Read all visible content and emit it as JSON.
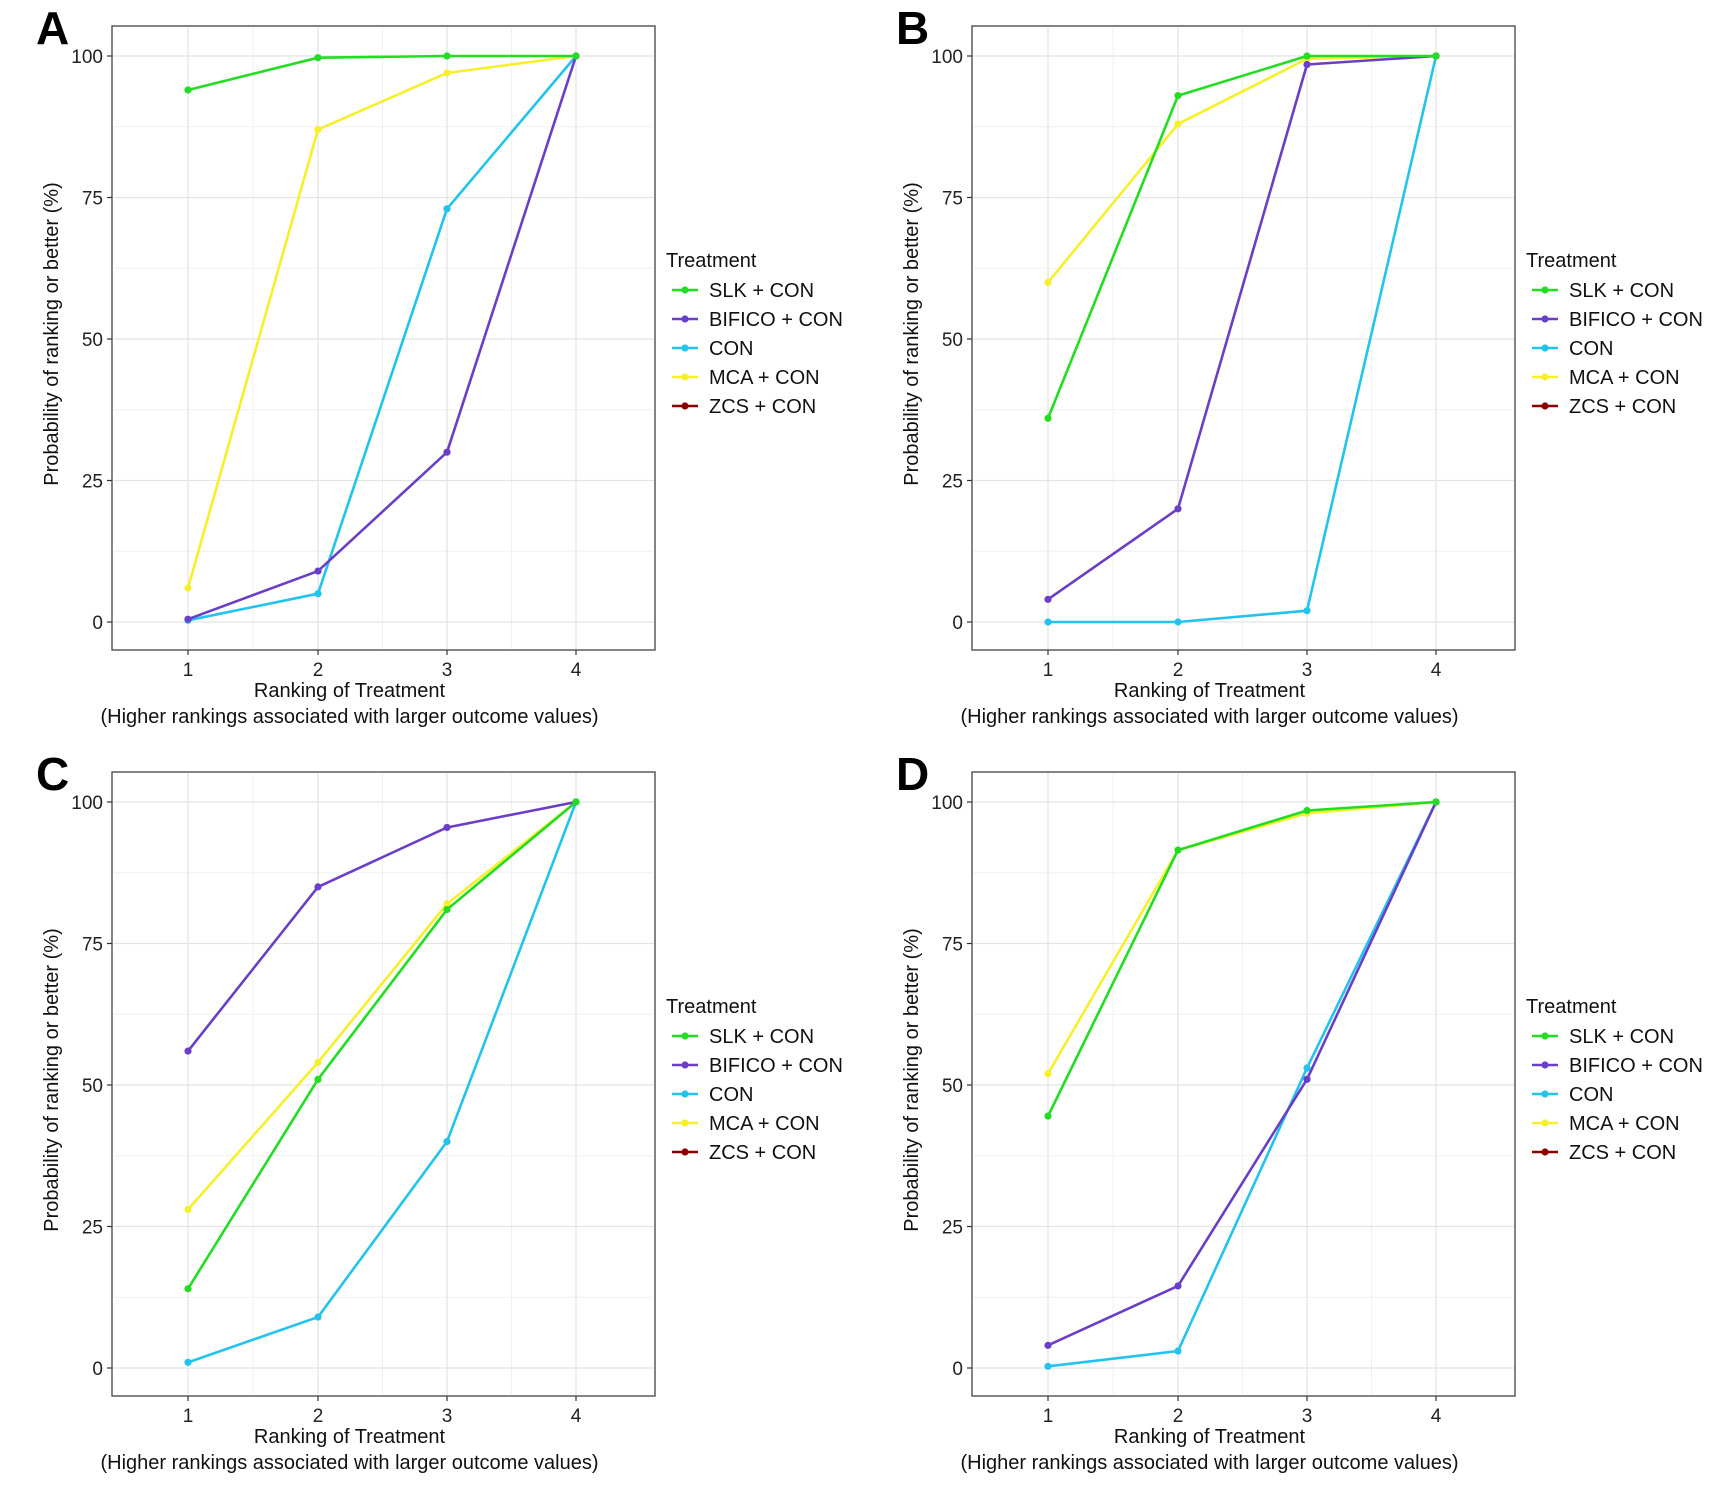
{
  "figure": {
    "axis_labels": {
      "ylabel": "Probability of  ranking or better (%)",
      "xlabel_line1": "Ranking of  Treatment",
      "xlabel_line2": "(Higher rankings associated with larger outcome values)"
    },
    "legend_title": "Treatment",
    "series_colors": {
      "SLK + CON": "#22dd22",
      "BIFICO + CON": "#6a3fc8",
      "CON": "#22c3ee",
      "MCA + CON": "#f6f02a",
      "ZCS + CON": "#8b0000"
    }
  },
  "chart_data": [
    {
      "panel": "A",
      "type": "line",
      "x": [
        1,
        2,
        3,
        4
      ],
      "ylim": [
        0,
        100
      ],
      "yticks": [
        0,
        25,
        50,
        75,
        100
      ],
      "legend": [
        "SLK + CON",
        "BIFICO + CON",
        "CON",
        "MCA + CON",
        "ZCS + CON"
      ],
      "series": [
        {
          "name": "MCA + CON",
          "values": [
            6,
            87,
            97,
            100
          ]
        },
        {
          "name": "CON",
          "values": [
            0.3,
            5,
            73,
            100
          ]
        },
        {
          "name": "BIFICO + CON",
          "values": [
            0.5,
            9,
            30,
            100
          ]
        },
        {
          "name": "SLK + CON",
          "values": [
            94,
            99.7,
            100,
            100
          ]
        }
      ]
    },
    {
      "panel": "B",
      "type": "line",
      "x": [
        1,
        2,
        3,
        4
      ],
      "ylim": [
        0,
        100
      ],
      "yticks": [
        0,
        25,
        50,
        75,
        100
      ],
      "legend": [
        "SLK + CON",
        "BIFICO + CON",
        "CON",
        "MCA + CON",
        "ZCS + CON"
      ],
      "series": [
        {
          "name": "MCA + CON",
          "values": [
            60,
            88,
            99.5,
            100
          ]
        },
        {
          "name": "CON",
          "values": [
            0,
            0,
            2,
            100
          ]
        },
        {
          "name": "BIFICO + CON",
          "values": [
            4,
            20,
            98.5,
            100
          ]
        },
        {
          "name": "SLK + CON",
          "values": [
            36,
            93,
            100,
            100
          ]
        }
      ]
    },
    {
      "panel": "C",
      "type": "line",
      "x": [
        1,
        2,
        3,
        4
      ],
      "ylim": [
        0,
        100
      ],
      "yticks": [
        0,
        25,
        50,
        75,
        100
      ],
      "legend": [
        "SLK + CON",
        "BIFICO + CON",
        "CON",
        "MCA + CON",
        "ZCS + CON"
      ],
      "series": [
        {
          "name": "MCA + CON",
          "values": [
            28,
            54,
            82,
            100
          ]
        },
        {
          "name": "CON",
          "values": [
            1,
            9,
            40,
            100
          ]
        },
        {
          "name": "BIFICO + CON",
          "values": [
            56,
            85,
            95.5,
            100
          ]
        },
        {
          "name": "SLK + CON",
          "values": [
            14,
            51,
            81,
            100
          ]
        }
      ]
    },
    {
      "panel": "D",
      "type": "line",
      "x": [
        1,
        2,
        3,
        4
      ],
      "ylim": [
        0,
        100
      ],
      "yticks": [
        0,
        25,
        50,
        75,
        100
      ],
      "legend": [
        "SLK + CON",
        "BIFICO + CON",
        "CON",
        "MCA + CON",
        "ZCS + CON"
      ],
      "series": [
        {
          "name": "MCA + CON",
          "values": [
            52,
            91.5,
            98,
            100
          ]
        },
        {
          "name": "CON",
          "values": [
            0.3,
            3,
            53,
            100
          ]
        },
        {
          "name": "BIFICO + CON",
          "values": [
            4,
            14.5,
            51,
            100
          ]
        },
        {
          "name": "SLK + CON",
          "values": [
            44.5,
            91.5,
            98.5,
            100
          ]
        }
      ]
    }
  ]
}
